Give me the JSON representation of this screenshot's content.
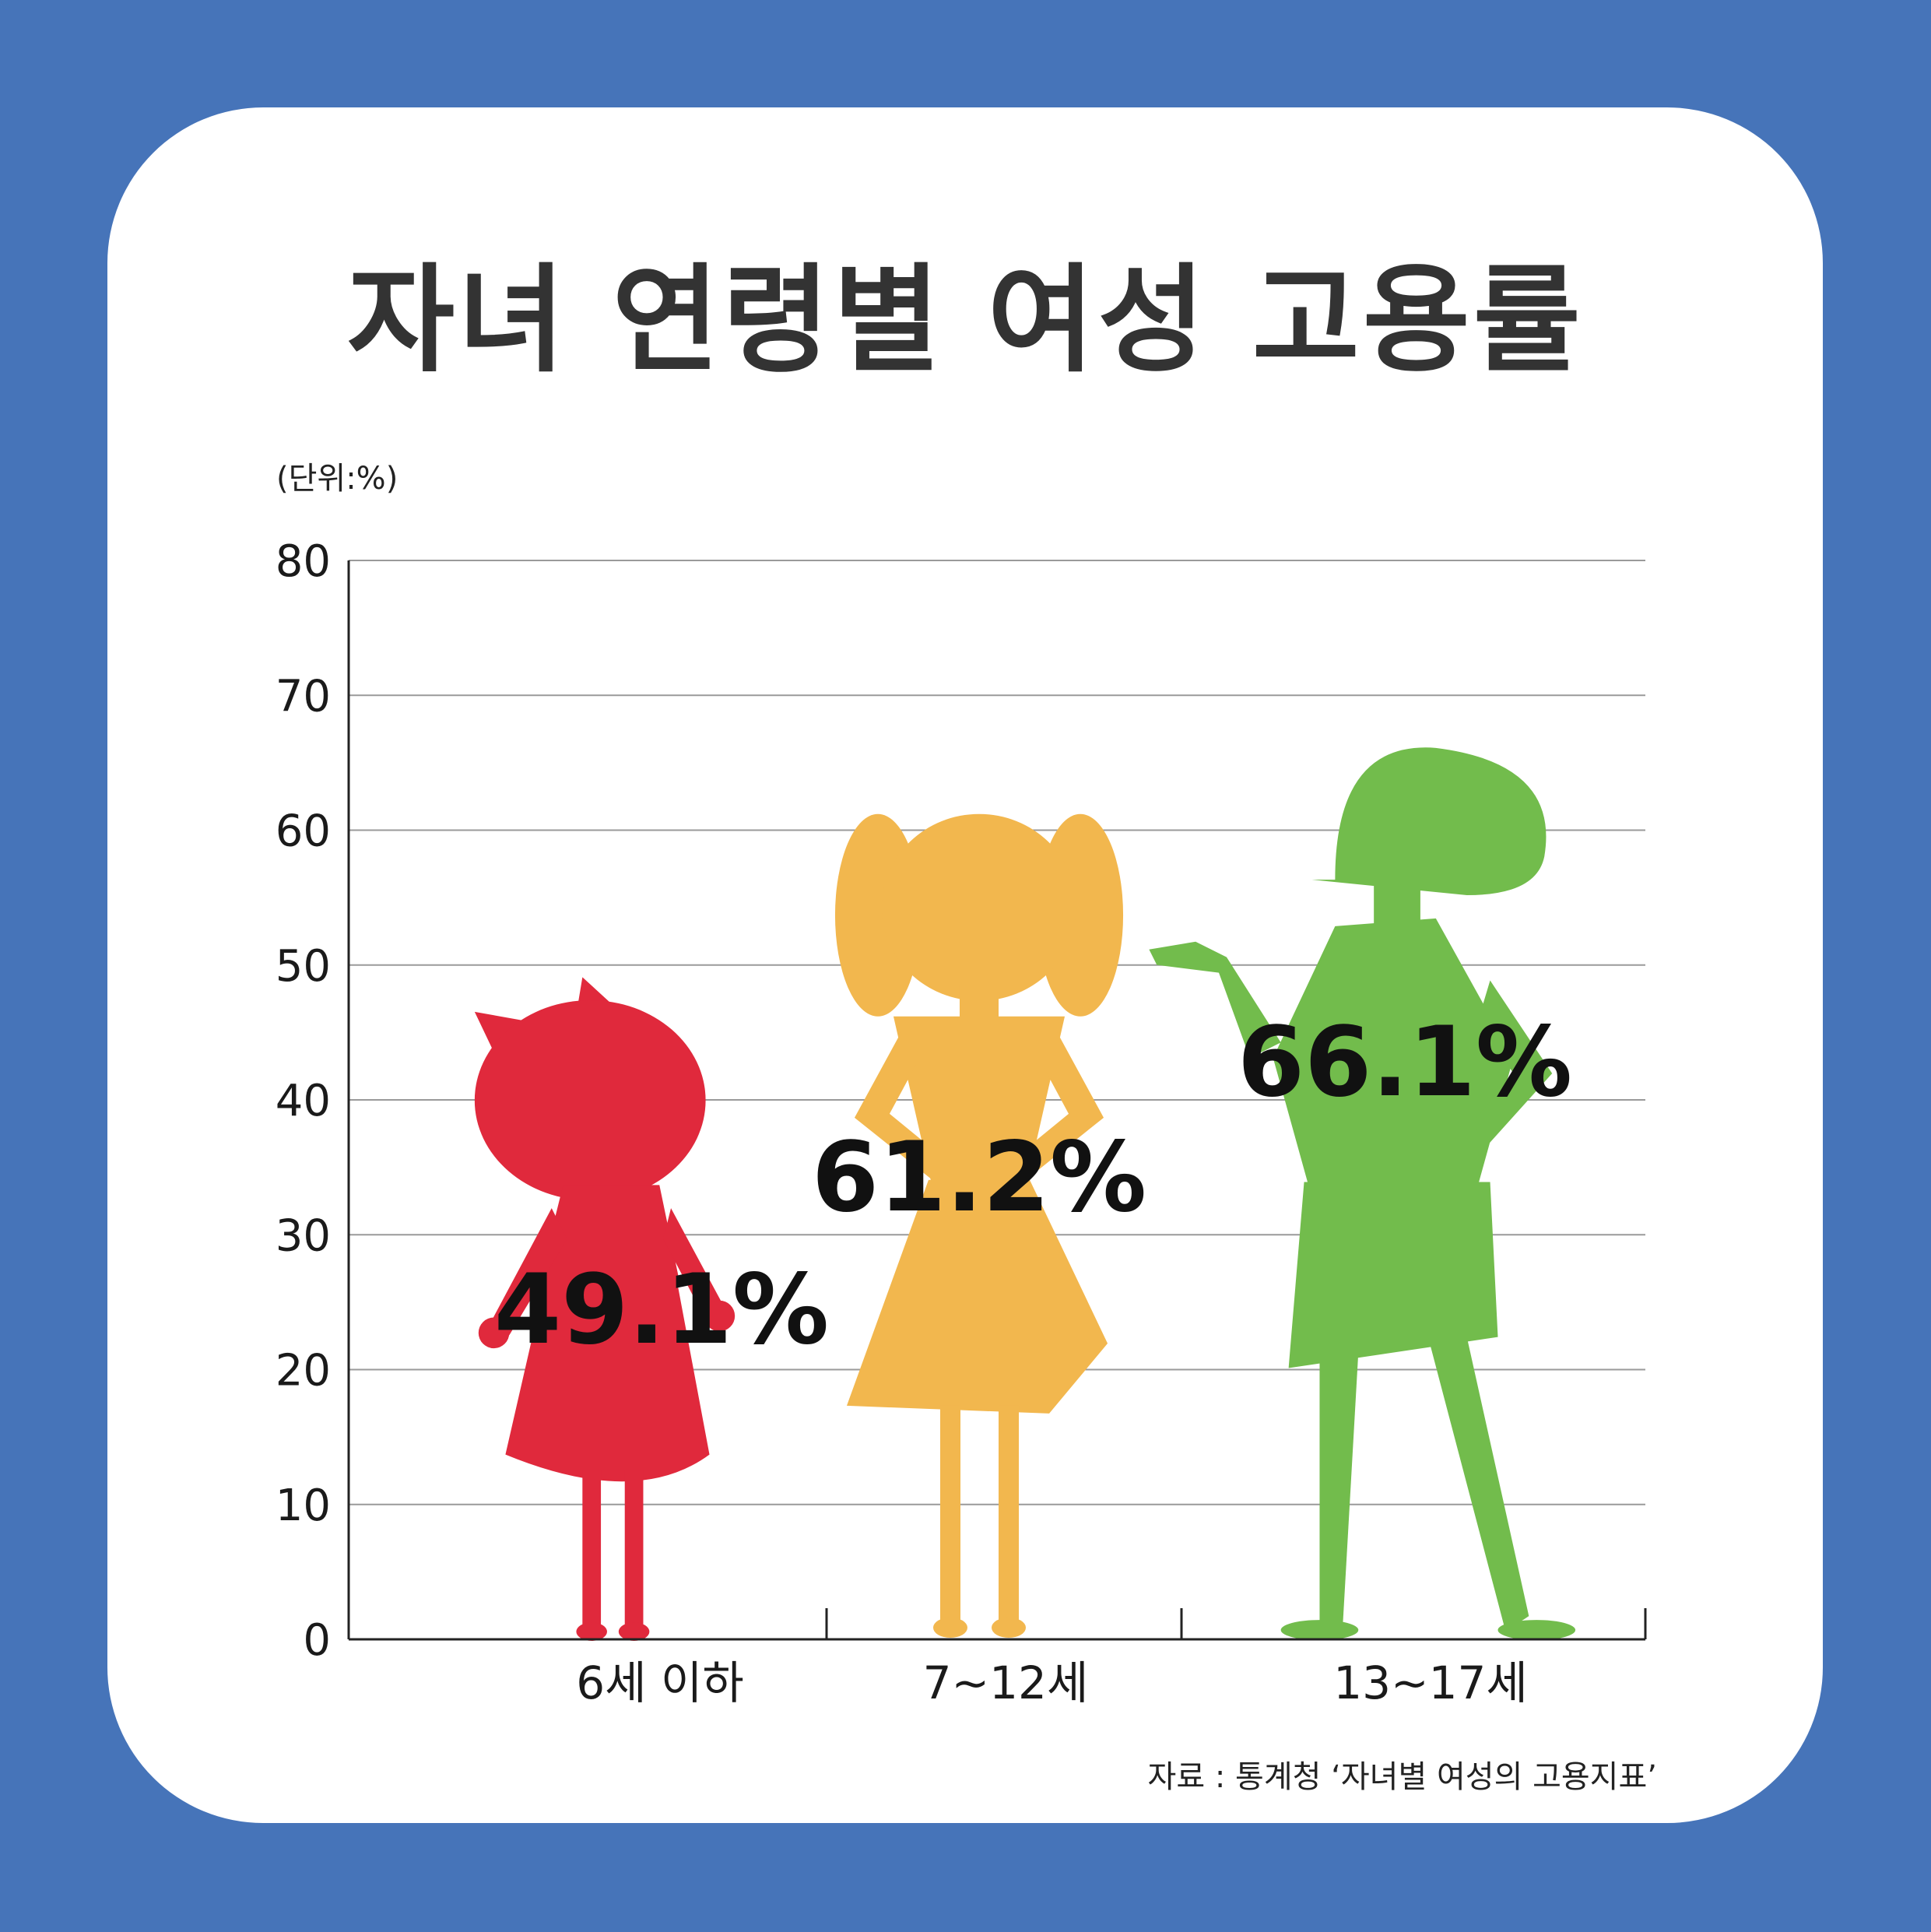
{
  "title": "자녀 연령별 여성 고용률",
  "unit_note": "(단위:%)",
  "source_note": "자료 : 통계청 ‘자녀별 여성의 고용지표’",
  "colors": {
    "background": "#4674b9",
    "card": "#ffffff",
    "series": [
      "#e0293c",
      "#f2b74e",
      "#72bc4c"
    ],
    "grid": "#9a9a9a",
    "text": "#333333"
  },
  "icons": [
    "girl-with-bow-silhouette-icon",
    "girl-with-pigtails-silhouette-icon",
    "teen-girl-silhouette-icon"
  ],
  "chart_data": {
    "type": "bar",
    "categories": [
      "6세 이하",
      "7~12세",
      "13~17세"
    ],
    "values": [
      49.1,
      61.2,
      66.1
    ],
    "value_labels": [
      "49.1%",
      "61.2%",
      "66.1%"
    ],
    "title": "자녀 연령별 여성 고용률",
    "xlabel": "",
    "ylabel": "",
    "ylim": [
      0,
      80
    ],
    "yticks": [
      "0",
      "10",
      "20",
      "30",
      "40",
      "50",
      "60",
      "70",
      "80"
    ],
    "grid": true,
    "legend": "none"
  }
}
